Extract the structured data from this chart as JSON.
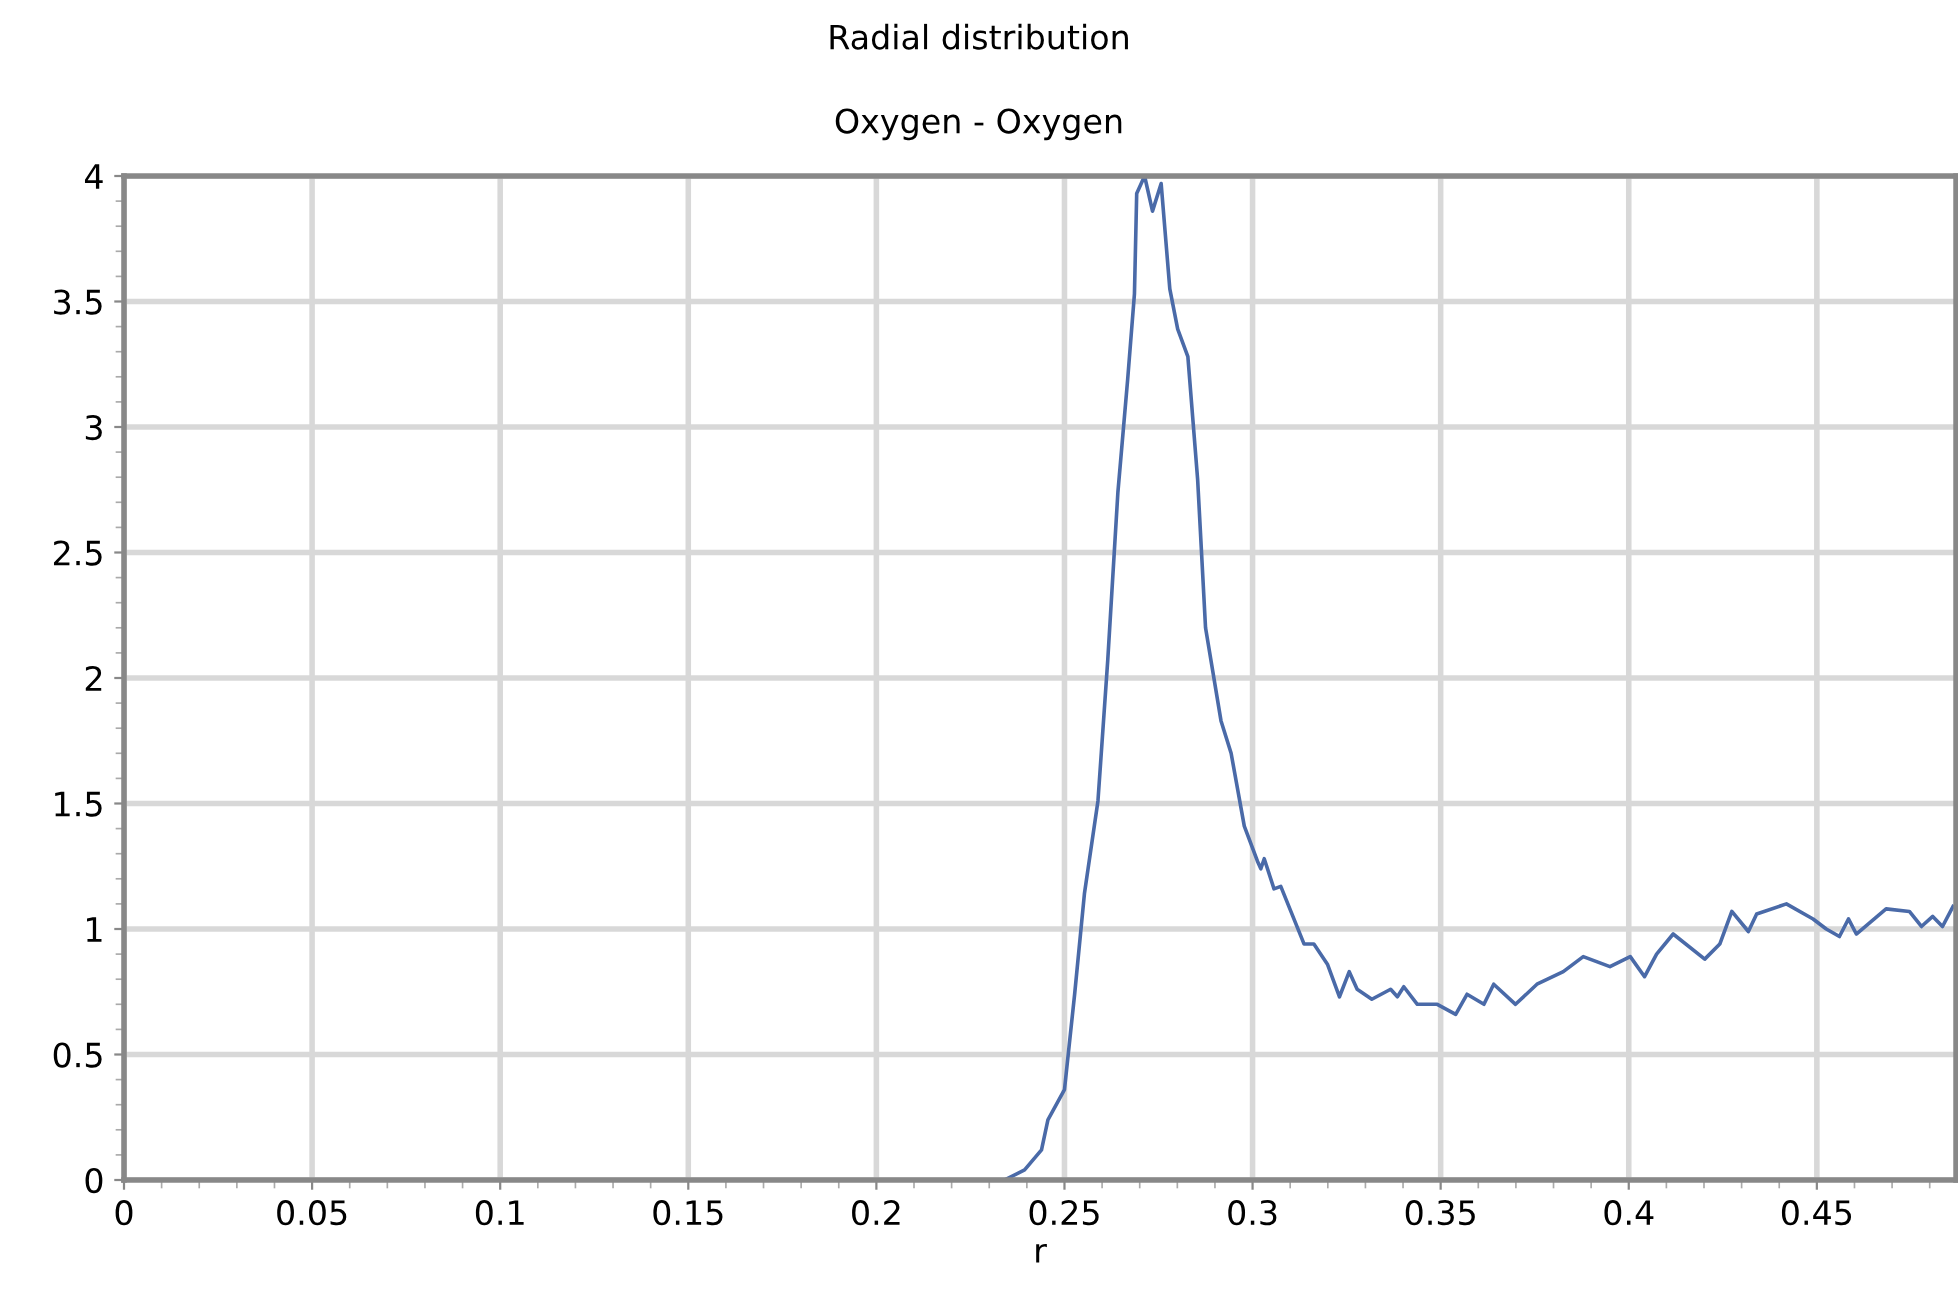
{
  "chart_data": {
    "type": "line",
    "title": "Radial distribution",
    "subtitle": "Oxygen - Oxygen",
    "xlabel": "r",
    "x": [
      0,
      0.234,
      0.2394,
      0.2439,
      0.2456,
      0.25,
      0.2527,
      0.2553,
      0.2589,
      0.2615,
      0.2642,
      0.2668,
      0.2686,
      0.2692,
      0.2713,
      0.2734,
      0.2757,
      0.278,
      0.2801,
      0.2828,
      0.2854,
      0.2875,
      0.2916,
      0.2943,
      0.2978,
      0.3013,
      0.3022,
      0.3031,
      0.3057,
      0.3075,
      0.3137,
      0.3163,
      0.3199,
      0.3231,
      0.3257,
      0.3278,
      0.3317,
      0.3367,
      0.3385,
      0.3402,
      0.3438,
      0.3491,
      0.354,
      0.357,
      0.3615,
      0.3641,
      0.3699,
      0.3756,
      0.3826,
      0.3879,
      0.395,
      0.4004,
      0.4042,
      0.4074,
      0.4118,
      0.4202,
      0.4242,
      0.4274,
      0.4318,
      0.434,
      0.4419,
      0.449,
      0.4525,
      0.456,
      0.4584,
      0.4605,
      0.4684,
      0.4746,
      0.4778,
      0.4808,
      0.4834,
      0.4862
    ],
    "series": [
      {
        "color": "#4a6aa8",
        "values": [
          0,
          0,
          0.04,
          0.12,
          0.24,
          0.36,
          0.74,
          1.14,
          1.51,
          2.07,
          2.74,
          3.19,
          3.53,
          3.93,
          4.0,
          3.86,
          3.97,
          3.55,
          3.39,
          3.28,
          2.79,
          2.2,
          1.83,
          1.7,
          1.41,
          1.27,
          1.24,
          1.28,
          1.16,
          1.17,
          0.94,
          0.94,
          0.86,
          0.73,
          0.83,
          0.76,
          0.72,
          0.76,
          0.73,
          0.77,
          0.7,
          0.7,
          0.66,
          0.74,
          0.7,
          0.78,
          0.7,
          0.78,
          0.83,
          0.89,
          0.85,
          0.89,
          0.81,
          0.9,
          0.98,
          0.88,
          0.94,
          1.07,
          0.99,
          1.06,
          1.1,
          1.04,
          1.0,
          0.97,
          1.04,
          0.98,
          1.08,
          1.07,
          1.01,
          1.05,
          1.01,
          1.09
        ]
      }
    ],
    "xlim": [
      0,
      0.487
    ],
    "ylim": [
      0,
      4
    ],
    "xticks": [
      0,
      0.05,
      0.1,
      0.15,
      0.2,
      0.25,
      0.3,
      0.35,
      0.4,
      0.45
    ],
    "yticks": [
      0,
      0.5,
      1,
      1.5,
      2,
      2.5,
      3,
      3.5,
      4
    ],
    "grid": true,
    "marker": "none",
    "line_style": "solid"
  }
}
